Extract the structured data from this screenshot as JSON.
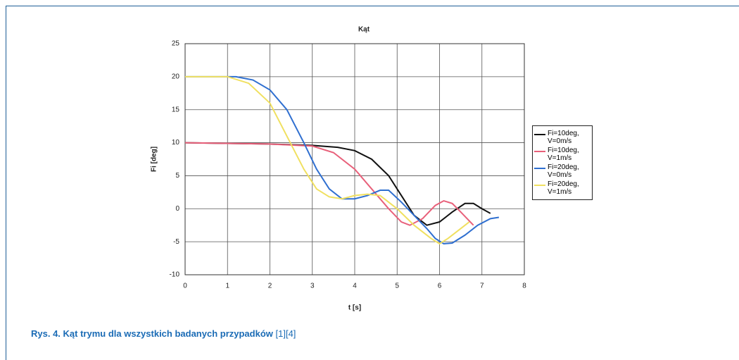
{
  "chart_data": {
    "type": "line",
    "title": "Kąt",
    "xlabel": "t [s]",
    "ylabel": "Fi [deg]",
    "xlim": [
      0,
      8
    ],
    "xticks": [
      0,
      1,
      2,
      3,
      4,
      5,
      6,
      7,
      8
    ],
    "ylim": [
      -10,
      25
    ],
    "yticks": [
      -10,
      -5,
      0,
      5,
      10,
      15,
      20,
      25
    ],
    "grid": true,
    "legend": "right",
    "series": [
      {
        "name": "Fi=10deg, V=0m/s",
        "color": "#111111",
        "x": [
          0,
          2,
          3,
          3.6,
          4,
          4.4,
          4.8,
          5.1,
          5.4,
          5.7,
          6,
          6.3,
          6.6,
          6.8,
          7,
          7.2
        ],
        "values": [
          10,
          9.8,
          9.6,
          9.3,
          8.8,
          7.5,
          5,
          2,
          -1,
          -2.5,
          -2,
          -0.5,
          0.8,
          0.8,
          0,
          -0.7
        ]
      },
      {
        "name": "Fi=10deg, V=1m/s",
        "color": "#e8607a",
        "x": [
          0,
          2,
          3,
          3.5,
          4,
          4.4,
          4.8,
          5.1,
          5.3,
          5.6,
          5.9,
          6.1,
          6.3,
          6.5,
          6.8
        ],
        "values": [
          10,
          9.8,
          9.5,
          8.5,
          6,
          3,
          0,
          -2,
          -2.5,
          -1.5,
          0.5,
          1.2,
          0.8,
          -0.5,
          -2.5
        ]
      },
      {
        "name": "Fi=20deg, V=0m/s",
        "color": "#2f6fd0",
        "x": [
          0,
          1.2,
          1.6,
          2,
          2.4,
          2.8,
          3.1,
          3.4,
          3.7,
          4,
          4.3,
          4.6,
          4.8,
          5.1,
          5.4,
          5.7,
          5.9,
          6.1,
          6.3,
          6.6,
          6.9,
          7.2,
          7.4
        ],
        "values": [
          20,
          20,
          19.5,
          18,
          15,
          10,
          6,
          3,
          1.5,
          1.5,
          2,
          2.8,
          2.8,
          1,
          -1,
          -3,
          -4.5,
          -5.3,
          -5.2,
          -4,
          -2.5,
          -1.5,
          -1.3
        ]
      },
      {
        "name": "Fi=20deg, V=1m/s",
        "color": "#f0e060",
        "x": [
          0,
          1,
          1.5,
          2,
          2.4,
          2.8,
          3.1,
          3.4,
          3.7,
          4,
          4.3,
          4.6,
          5,
          5.4,
          5.8,
          6,
          6.2,
          6.5,
          6.7
        ],
        "values": [
          20,
          20,
          19,
          16,
          11,
          6,
          3,
          1.8,
          1.5,
          2,
          2.2,
          2,
          0,
          -2.5,
          -4.5,
          -5.3,
          -4.5,
          -3,
          -2
        ]
      }
    ]
  },
  "caption": {
    "text": "Rys. 4. Kąt trymu dla wszystkich badanych przypadków",
    "refs": "[1][4]"
  }
}
